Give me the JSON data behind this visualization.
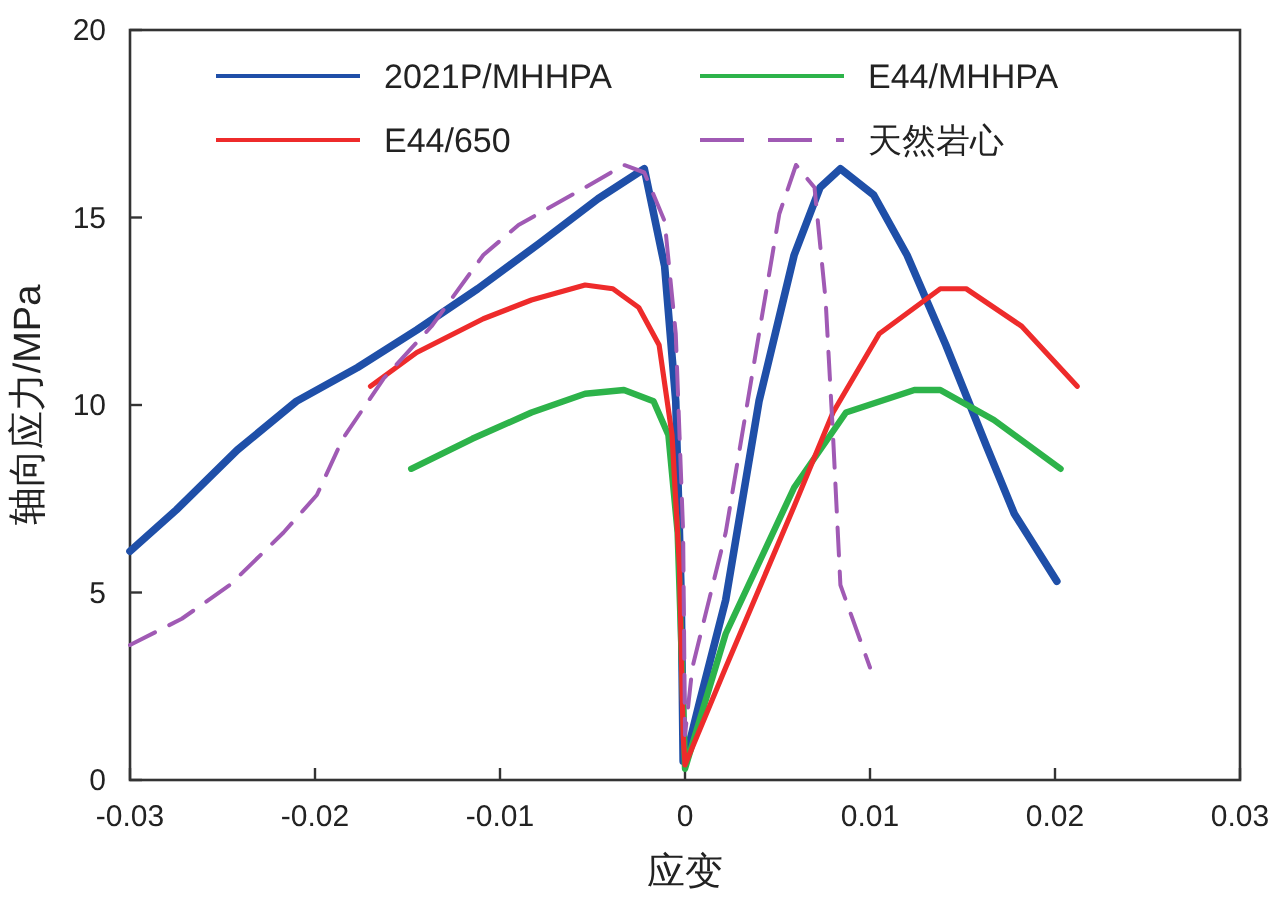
{
  "chart_data": {
    "type": "line",
    "xlabel": "应变",
    "ylabel": "轴向应力/MPa",
    "xlim": [
      -0.03,
      0.03
    ],
    "ylim": [
      0,
      20
    ],
    "xticks": [
      -0.03,
      -0.02,
      -0.01,
      0,
      0.01,
      0.02,
      0.03
    ],
    "yticks": [
      0,
      5,
      10,
      15,
      20
    ],
    "legend": "top",
    "series": [
      {
        "name": "2021P/MHHPA",
        "color": "#1f4fa8",
        "line_style": "solid",
        "x": [
          -0.03,
          -0.0275,
          -0.0242,
          -0.021,
          -0.0177,
          -0.0145,
          -0.0112,
          -0.0079,
          -0.0047,
          -0.0022,
          -0.0011,
          -0.0005,
          -0.0002,
          -0.0001,
          0,
          0.0008,
          0.0022,
          0.004,
          0.0059,
          0.0073,
          0.0084,
          0.0102,
          0.012,
          0.0141,
          0.0163,
          0.0178,
          0.0201
        ],
        "values": [
          6.1,
          7.2,
          8.8,
          10.1,
          11.0,
          12.0,
          13.1,
          14.3,
          15.5,
          16.3,
          13.7,
          10.1,
          4.8,
          0.5,
          0.5,
          2.1,
          4.8,
          10.1,
          14.0,
          15.8,
          16.3,
          15.6,
          14.0,
          11.6,
          8.9,
          7.1,
          5.3
        ]
      },
      {
        "name": "E44/MHHPA",
        "color": "#2db34a",
        "line_style": "solid",
        "x": [
          -0.0148,
          -0.0115,
          -0.0083,
          -0.0054,
          -0.0033,
          -0.0017,
          -0.0009,
          -0.0004,
          -0.0001,
          0,
          0.0022,
          0.0059,
          0.0087,
          0.0124,
          0.0138,
          0.0167,
          0.0203
        ],
        "values": [
          8.3,
          9.1,
          9.8,
          10.3,
          10.4,
          10.1,
          9.2,
          6.6,
          2.1,
          0.3,
          3.9,
          7.8,
          9.8,
          10.4,
          10.4,
          9.6,
          8.3
        ]
      },
      {
        "name": "E44/650",
        "color": "#ee2b2b",
        "line_style": "solid",
        "x": [
          -0.017,
          -0.0145,
          -0.0109,
          -0.0083,
          -0.0054,
          -0.0039,
          -0.0025,
          -0.0014,
          -0.0007,
          -0.0003,
          -0.0001,
          0,
          0.0022,
          0.0059,
          0.008,
          0.0105,
          0.0138,
          0.0152,
          0.0182,
          0.0212
        ],
        "values": [
          10.5,
          11.4,
          12.3,
          12.8,
          13.2,
          13.1,
          12.6,
          11.6,
          9.2,
          5.7,
          1.2,
          0.4,
          3.0,
          7.3,
          9.8,
          11.9,
          13.1,
          13.1,
          12.1,
          10.5
        ]
      },
      {
        "name": "天然岩心",
        "color": "#a05ab4",
        "line_style": "dashed",
        "x": [
          -0.03,
          -0.0272,
          -0.0246,
          -0.0217,
          -0.0199,
          -0.0185,
          -0.0163,
          -0.0137,
          -0.0109,
          -0.009,
          -0.0054,
          -0.0033,
          -0.0022,
          -0.0011,
          -0.0005,
          -0.0001,
          0,
          0.0004,
          0.0022,
          0.004,
          0.0051,
          0.006,
          0.007,
          0.0076,
          0.008,
          0.0084,
          0.01
        ],
        "values": [
          3.6,
          4.3,
          5.2,
          6.6,
          7.6,
          9.1,
          10.7,
          12.1,
          14.0,
          14.8,
          15.8,
          16.4,
          16.2,
          14.9,
          11.9,
          6.6,
          1.2,
          3.0,
          6.6,
          11.9,
          15.1,
          16.4,
          15.8,
          12.8,
          9.2,
          5.2,
          3.0
        ]
      }
    ]
  }
}
